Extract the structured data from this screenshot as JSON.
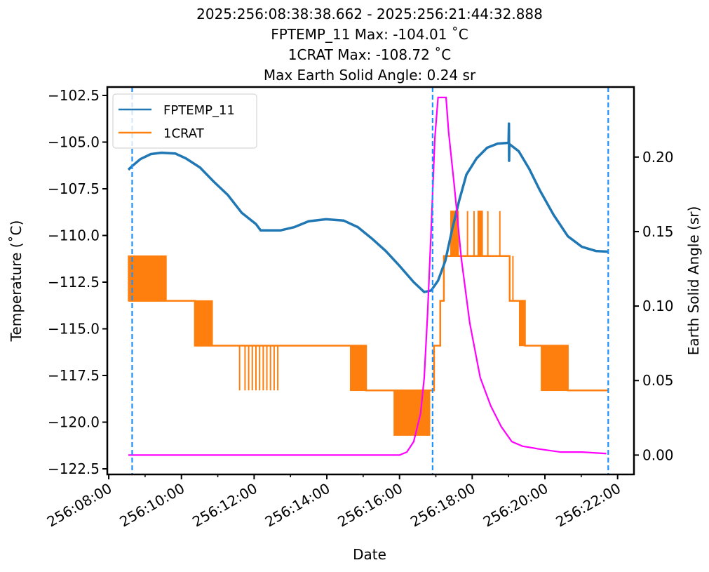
{
  "chart_data": {
    "type": "line",
    "title_lines": [
      "2025:256:08:38:38.662 - 2025:256:21:44:32.888",
      "FPTEMP_11 Max: -104.01 ˚C",
      "1CRAT Max: -108.72 ˚C",
      "Max Earth Solid Angle: 0.24 sr"
    ],
    "xlabel": "Date",
    "ylabel": "Temperature (˚C)",
    "y2label": "Earth Solid Angle (sr)",
    "x_unit": "hours of day 256",
    "xlim": [
      7.96,
      22.45
    ],
    "ylim": [
      -122.8,
      -102.05
    ],
    "y2lim": [
      -0.013,
      0.247
    ],
    "x_ticks": [
      {
        "value": 8,
        "label": "256:08:00"
      },
      {
        "value": 10,
        "label": "256:10:00"
      },
      {
        "value": 12,
        "label": "256:12:00"
      },
      {
        "value": 14,
        "label": "256:14:00"
      },
      {
        "value": 16,
        "label": "256:16:00"
      },
      {
        "value": 18,
        "label": "256:18:00"
      },
      {
        "value": 20,
        "label": "256:20:00"
      },
      {
        "value": 22,
        "label": "256:22:00"
      }
    ],
    "x_minor_ticks": [
      9,
      11,
      13,
      15,
      17,
      19,
      21
    ],
    "y_ticks": [
      {
        "value": -102.5,
        "label": "−102.5"
      },
      {
        "value": -105.0,
        "label": "−105.0"
      },
      {
        "value": -107.5,
        "label": "−107.5"
      },
      {
        "value": -110.0,
        "label": "−110.0"
      },
      {
        "value": -112.5,
        "label": "−112.5"
      },
      {
        "value": -115.0,
        "label": "−115.0"
      },
      {
        "value": -117.5,
        "label": "−117.5"
      },
      {
        "value": -120.0,
        "label": "−120.0"
      },
      {
        "value": -122.5,
        "label": "−122.5"
      }
    ],
    "y2_ticks": [
      {
        "value": 0.0,
        "label": "0.00"
      },
      {
        "value": 0.05,
        "label": "0.05"
      },
      {
        "value": 0.1,
        "label": "0.10"
      },
      {
        "value": 0.15,
        "label": "0.15"
      },
      {
        "value": 0.2,
        "label": "0.20"
      }
    ],
    "legend": {
      "placement": "top-left",
      "entries": [
        {
          "label": "FPTEMP_11",
          "color": "#1f77b4"
        },
        {
          "label": "1CRAT",
          "color": "#ff7f0e"
        }
      ]
    },
    "vlines": {
      "color": "#1e90ff",
      "x": [
        8.644,
        16.91,
        21.742
      ]
    },
    "series": [
      {
        "name": "FPTEMP_11",
        "color": "#1f77b4",
        "axis": "left",
        "points": [
          [
            8.54,
            -106.48
          ],
          [
            8.64,
            -106.29
          ],
          [
            8.87,
            -105.91
          ],
          [
            9.16,
            -105.64
          ],
          [
            9.45,
            -105.57
          ],
          [
            9.83,
            -105.61
          ],
          [
            10.12,
            -105.87
          ],
          [
            10.51,
            -106.36
          ],
          [
            10.89,
            -107.12
          ],
          [
            11.28,
            -107.84
          ],
          [
            11.66,
            -108.79
          ],
          [
            12.05,
            -109.39
          ],
          [
            12.18,
            -109.73
          ],
          [
            12.44,
            -109.73
          ],
          [
            12.72,
            -109.73
          ],
          [
            13.11,
            -109.55
          ],
          [
            13.5,
            -109.24
          ],
          [
            13.98,
            -109.13
          ],
          [
            14.46,
            -109.2
          ],
          [
            14.85,
            -109.55
          ],
          [
            15.23,
            -110.15
          ],
          [
            15.62,
            -110.83
          ],
          [
            16.0,
            -111.63
          ],
          [
            16.39,
            -112.5
          ],
          [
            16.68,
            -113.03
          ],
          [
            16.87,
            -112.95
          ],
          [
            17.06,
            -112.42
          ],
          [
            17.26,
            -111.36
          ],
          [
            17.45,
            -109.66
          ],
          [
            17.64,
            -108.14
          ],
          [
            17.84,
            -106.74
          ],
          [
            18.12,
            -105.87
          ],
          [
            18.41,
            -105.3
          ],
          [
            18.7,
            -105.08
          ],
          [
            19.0,
            -105.04
          ],
          [
            19.01,
            -104.01
          ],
          [
            19.015,
            -106.0
          ],
          [
            19.02,
            -105.1
          ],
          [
            19.28,
            -105.49
          ],
          [
            19.57,
            -106.44
          ],
          [
            19.86,
            -107.58
          ],
          [
            20.24,
            -108.9
          ],
          [
            20.63,
            -110.04
          ],
          [
            21.02,
            -110.61
          ],
          [
            21.4,
            -110.83
          ],
          [
            21.75,
            -110.87
          ]
        ]
      },
      {
        "name": "1CRAT",
        "color": "#ff7f0e",
        "axis": "left",
        "steps": [
          [
            8.54,
            -113.5
          ],
          [
            10.37,
            -115.9
          ],
          [
            15.08,
            -118.3
          ],
          [
            16.95,
            -115.9
          ],
          [
            17.12,
            -113.5
          ],
          [
            17.22,
            -111.1
          ],
          [
            19.03,
            -113.5
          ],
          [
            19.45,
            -115.9
          ],
          [
            20.63,
            -118.3
          ],
          [
            21.75,
            -118.3
          ]
        ],
        "toggle_bands": [
          [
            8.54,
            9.58,
            -113.5,
            -111.1
          ],
          [
            10.37,
            10.85,
            -115.9,
            -113.5
          ],
          [
            14.65,
            15.08,
            -118.3,
            -115.9
          ],
          [
            15.85,
            16.83,
            -120.7,
            -118.3
          ],
          [
            17.41,
            17.62,
            -111.1,
            -108.7
          ],
          [
            18.16,
            18.28,
            -111.1,
            -108.7
          ],
          [
            19.3,
            19.45,
            -115.9,
            -113.5
          ],
          [
            19.9,
            20.63,
            -118.3,
            -115.9
          ]
        ],
        "spikes": [
          [
            11.6,
            -115.9,
            -118.3
          ],
          [
            11.75,
            -115.9,
            -118.3
          ],
          [
            11.85,
            -115.9,
            -118.3
          ],
          [
            11.95,
            -115.9,
            -118.3
          ],
          [
            12.05,
            -115.9,
            -118.3
          ],
          [
            12.15,
            -115.9,
            -118.3
          ],
          [
            12.25,
            -115.9,
            -118.3
          ],
          [
            12.35,
            -115.9,
            -118.3
          ],
          [
            12.45,
            -115.9,
            -118.3
          ],
          [
            12.55,
            -115.9,
            -118.3
          ],
          [
            12.65,
            -115.9,
            -118.3
          ],
          [
            17.87,
            -111.1,
            -108.7
          ],
          [
            18.05,
            -111.1,
            -108.7
          ],
          [
            18.43,
            -111.1,
            -108.7
          ],
          [
            18.76,
            -111.1,
            -108.7
          ],
          [
            19.12,
            -113.5,
            -111.1
          ]
        ]
      },
      {
        "name": "Earth Solid Angle",
        "color": "#ff00ff",
        "axis": "right",
        "points": [
          [
            8.54,
            0.0
          ],
          [
            16.0,
            0.0
          ],
          [
            16.2,
            0.002
          ],
          [
            16.39,
            0.009
          ],
          [
            16.58,
            0.028
          ],
          [
            16.68,
            0.052
          ],
          [
            16.77,
            0.094
          ],
          [
            16.87,
            0.151
          ],
          [
            16.97,
            0.212
          ],
          [
            17.06,
            0.24
          ],
          [
            17.28,
            0.24
          ],
          [
            17.35,
            0.217
          ],
          [
            17.51,
            0.18
          ],
          [
            17.7,
            0.132
          ],
          [
            17.93,
            0.089
          ],
          [
            18.22,
            0.052
          ],
          [
            18.51,
            0.033
          ],
          [
            18.8,
            0.019
          ],
          [
            19.09,
            0.009
          ],
          [
            19.38,
            0.006
          ],
          [
            19.86,
            0.004
          ],
          [
            20.44,
            0.002
          ],
          [
            21.02,
            0.002
          ],
          [
            21.69,
            0.001
          ]
        ]
      }
    ]
  }
}
